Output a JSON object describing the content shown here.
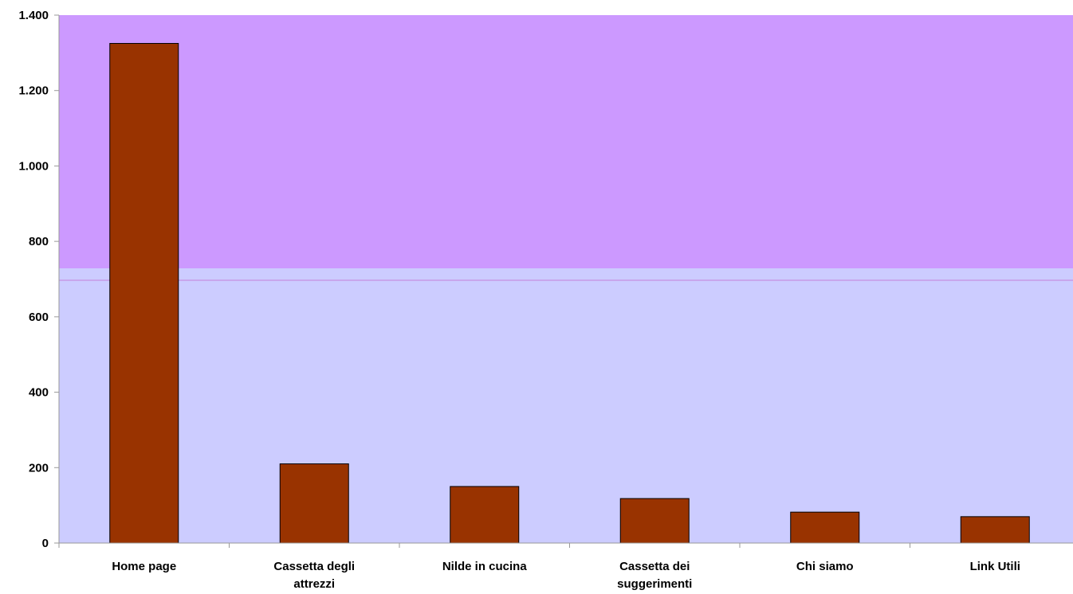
{
  "chart_data": {
    "type": "bar",
    "categories": [
      [
        "Home page"
      ],
      [
        "Cassetta degli",
        "attrezzi"
      ],
      [
        "Nilde in cucina"
      ],
      [
        "Cassetta dei",
        "suggerimenti"
      ],
      [
        "Chi siamo"
      ],
      [
        "Link Utili"
      ]
    ],
    "values": [
      1325,
      210,
      150,
      118,
      82,
      70
    ],
    "ylim": [
      0,
      1400
    ],
    "yticks": [
      0,
      200,
      400,
      600,
      800,
      1000,
      1200,
      1400
    ],
    "ytick_labels": [
      "0",
      "200",
      "400",
      "600",
      "800",
      "1.000",
      "1.200",
      "1.400"
    ],
    "title": "",
    "xlabel": "",
    "ylabel": "",
    "grid": false,
    "legend": "none",
    "colors": {
      "bar_fill": "#993300",
      "bar_stroke": "#000000",
      "plot_background_upper": "#CC99FF",
      "plot_background_lower": "#CCCCFF",
      "axis": "#999999"
    }
  }
}
